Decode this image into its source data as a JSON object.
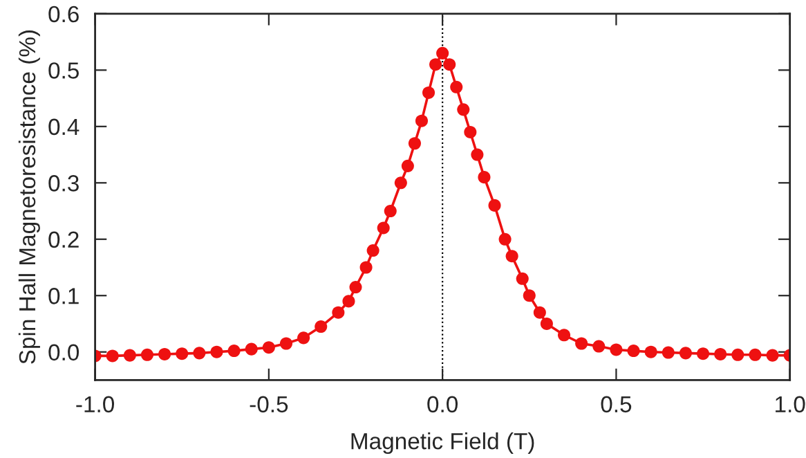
{
  "chart_data": {
    "type": "line",
    "xlabel": "Magnetic Field (T)",
    "ylabel": "Spin Hall Magnetoresistance (%)",
    "x": [
      -1.0,
      -0.95,
      -0.9,
      -0.85,
      -0.8,
      -0.75,
      -0.7,
      -0.65,
      -0.6,
      -0.55,
      -0.5,
      -0.45,
      -0.4,
      -0.35,
      -0.3,
      -0.27,
      -0.25,
      -0.22,
      -0.2,
      -0.17,
      -0.15,
      -0.12,
      -0.1,
      -0.08,
      -0.06,
      -0.04,
      -0.02,
      0.0,
      0.02,
      0.04,
      0.06,
      0.08,
      0.1,
      0.12,
      0.15,
      0.18,
      0.2,
      0.23,
      0.25,
      0.28,
      0.3,
      0.35,
      0.4,
      0.45,
      0.5,
      0.55,
      0.6,
      0.65,
      0.7,
      0.75,
      0.8,
      0.85,
      0.9,
      0.95,
      1.0
    ],
    "series": [
      {
        "color": "#ee1111",
        "values": [
          -0.007,
          -0.007,
          -0.006,
          -0.005,
          -0.004,
          -0.003,
          -0.002,
          0.0,
          0.002,
          0.005,
          0.008,
          0.015,
          0.025,
          0.045,
          0.07,
          0.09,
          0.115,
          0.15,
          0.18,
          0.22,
          0.25,
          0.3,
          0.33,
          0.37,
          0.41,
          0.46,
          0.51,
          0.53,
          0.51,
          0.47,
          0.43,
          0.39,
          0.35,
          0.31,
          0.26,
          0.2,
          0.17,
          0.13,
          0.1,
          0.07,
          0.05,
          0.03,
          0.015,
          0.01,
          0.004,
          0.002,
          0.0,
          -0.001,
          -0.002,
          -0.003,
          -0.004,
          -0.005,
          -0.005,
          -0.006,
          -0.006
        ]
      }
    ],
    "xlim": [
      -1.0,
      1.0
    ],
    "xticks": [
      {
        "value": -1.0,
        "label": "-1.0"
      },
      {
        "value": -0.5,
        "label": "-0.5"
      },
      {
        "value": 0.0,
        "label": "0.0"
      },
      {
        "value": 0.5,
        "label": "0.5"
      },
      {
        "value": 1.0,
        "label": "1.0"
      }
    ],
    "ylim": [
      -0.05,
      0.6
    ],
    "yticks": [
      {
        "value": 0.0,
        "label": "0.0"
      },
      {
        "value": 0.1,
        "label": "0.1"
      },
      {
        "value": 0.2,
        "label": "0.2"
      },
      {
        "value": 0.3,
        "label": "0.3"
      },
      {
        "value": 0.4,
        "label": "0.4"
      },
      {
        "value": 0.5,
        "label": "0.5"
      },
      {
        "value": 0.6,
        "label": "0.6"
      }
    ],
    "ref_lines": [
      {
        "axis": "x",
        "value": 0.0,
        "color": "#000000",
        "line_style": "dotted"
      }
    ],
    "marker": "circle",
    "line_style": "solid",
    "grid": false,
    "legend": false
  }
}
